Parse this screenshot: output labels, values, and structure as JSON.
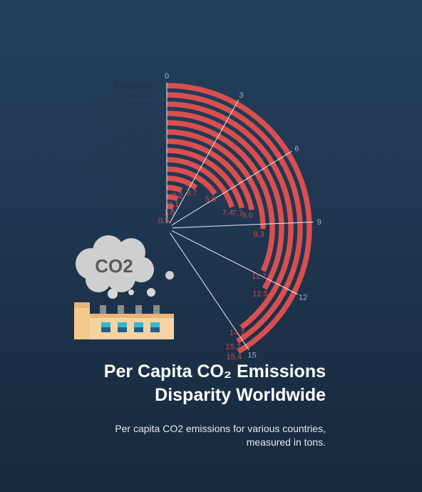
{
  "title_line1": "Per Capita CO₂ Emissions",
  "title_line2": "Disparity Worldwide",
  "subtitle_line1": "Per capita CO2 emissions for various countries,",
  "subtitle_line2": "measured in tons.",
  "illustration": {
    "cloud_text": "CO2",
    "icon": "factory-icon"
  },
  "colors": {
    "bar": "#d94f4f",
    "value_label": "#d34646",
    "category_label": "#25364a",
    "tick": "#9fb0c2",
    "background_top": "#253f5a",
    "background_bottom": "#172a3d"
  },
  "chart_data": {
    "type": "bar",
    "layout": "radial",
    "categories": [
      "Australia",
      "Canada",
      "United States",
      "Russia",
      "South Korea",
      "Japan",
      "Germany",
      "South Africa",
      "China",
      "United Kingdom",
      "Mexico",
      "Brazil",
      "Indonesia",
      "India",
      "Nigeria"
    ],
    "values": [
      15.4,
      15.2,
      14.7,
      12.5,
      11.7,
      9.3,
      8.0,
      7.7,
      7.4,
      5.6,
      3.7,
      2.2,
      2.1,
      1.8,
      0.5
    ],
    "value_labels": [
      "15.4",
      "15.2",
      "14.7",
      "12.5",
      "11.7",
      "9.3",
      "8.0",
      "7.7",
      "7.4",
      "5.6",
      "3.7",
      "2.2",
      "2.1",
      "1.8",
      "0.5"
    ],
    "ticks": [
      0,
      3,
      6,
      9,
      12,
      15
    ],
    "tick_labels": [
      "0",
      "3",
      "6",
      "9",
      "12",
      "15"
    ],
    "range": [
      0,
      15
    ],
    "grid": true
  }
}
